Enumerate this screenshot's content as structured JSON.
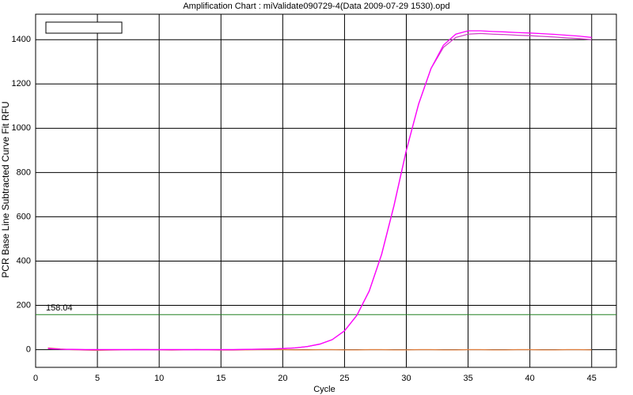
{
  "chart_data": {
    "type": "line",
    "title": "Amplification Chart : miValidate090729-4(Data 2009-07-29 1530).opd",
    "x_label": "Cycle",
    "y_label": "PCR Base Line Subtracted Curve Fit RFU",
    "x": [
      1,
      2,
      3,
      4,
      5,
      6,
      7,
      8,
      9,
      10,
      11,
      12,
      13,
      14,
      15,
      16,
      17,
      18,
      19,
      20,
      21,
      22,
      23,
      24,
      25,
      26,
      27,
      28,
      29,
      30,
      31,
      32,
      33,
      34,
      35,
      36,
      37,
      38,
      39,
      40,
      41,
      42,
      43,
      44,
      45
    ],
    "series": [
      {
        "color": "#ff00ff",
        "values": [
          5,
          2,
          1,
          0,
          0,
          0,
          0,
          0,
          0,
          0,
          0,
          0,
          0,
          0,
          0,
          0,
          1,
          2,
          3,
          5,
          8,
          14,
          25,
          45,
          85,
          155,
          265,
          430,
          650,
          900,
          1110,
          1270,
          1375,
          1425,
          1440,
          1440,
          1437,
          1435,
          1432,
          1430,
          1427,
          1424,
          1420,
          1416,
          1410
        ]
      },
      {
        "color": "#d040c8",
        "values": [
          5,
          2,
          1,
          0,
          0,
          0,
          0,
          0,
          0,
          0,
          0,
          0,
          0,
          0,
          0,
          0,
          1,
          2,
          3,
          5,
          8,
          14,
          25,
          45,
          85,
          155,
          265,
          430,
          650,
          900,
          1110,
          1270,
          1365,
          1410,
          1425,
          1428,
          1425,
          1423,
          1420,
          1418,
          1415,
          1412,
          1408,
          1405,
          1400
        ]
      },
      {
        "color": "#e08040",
        "values": [
          8,
          3,
          0,
          -2,
          -3,
          -2,
          -1,
          0,
          0,
          -1,
          -2,
          -1,
          0,
          -1,
          -2,
          -2,
          -1,
          0,
          0,
          0,
          -1,
          -1,
          0,
          0,
          -1,
          -1,
          0,
          0,
          -1,
          -1,
          0,
          0,
          -1,
          -1,
          0,
          0,
          -1,
          -1,
          0,
          0,
          -1,
          -1,
          0,
          0,
          -1
        ]
      }
    ],
    "threshold": 158.04,
    "threshold_color": "#208020",
    "xlim": [
      0,
      47
    ],
    "ylim": [
      -80,
      1515
    ],
    "xticks": [
      0,
      5,
      10,
      15,
      20,
      25,
      30,
      35,
      40,
      45
    ],
    "yticks": [
      0,
      200,
      400,
      600,
      800,
      1000,
      1200,
      1400
    ],
    "grid": true
  }
}
